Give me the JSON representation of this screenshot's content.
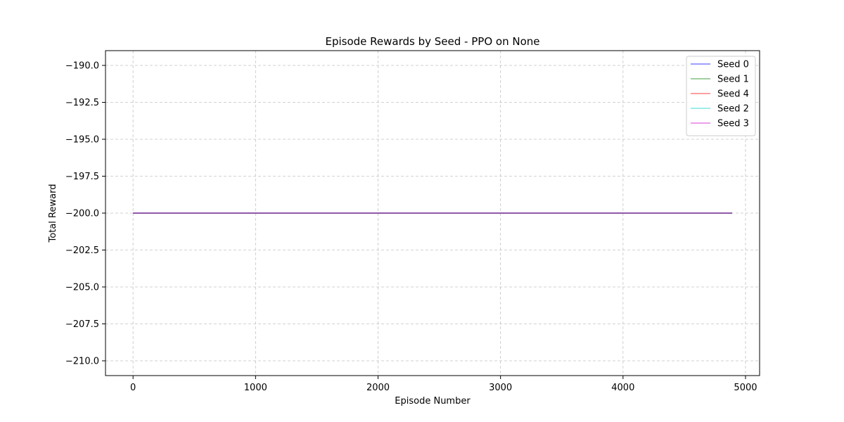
{
  "chart_data": {
    "type": "line",
    "title": "Episode Rewards by Seed - PPO on None",
    "xlabel": "Episode Number",
    "ylabel": "Total Reward",
    "xlim": [
      -225,
      5115
    ],
    "ylim": [
      -211,
      -189
    ],
    "xticks": [
      0,
      1000,
      2000,
      3000,
      4000,
      5000
    ],
    "xtick_labels": [
      "0",
      "1000",
      "2000",
      "3000",
      "4000",
      "5000"
    ],
    "yticks": [
      -190.0,
      -192.5,
      -195.0,
      -197.5,
      -200.0,
      -202.5,
      -205.0,
      -207.5,
      -210.0
    ],
    "ytick_labels": [
      "−190.0",
      "−192.5",
      "−195.0",
      "−197.5",
      "−200.0",
      "−202.5",
      "−205.0",
      "−207.5",
      "−210.0"
    ],
    "grid": true,
    "legend_position": "top-right",
    "series": [
      {
        "name": "Seed 0",
        "color": "#0000ff",
        "x": [
          0,
          4890
        ],
        "y": [
          -200,
          -200
        ]
      },
      {
        "name": "Seed 1",
        "color": "#008000",
        "x": [
          0,
          4890
        ],
        "y": [
          -200,
          -200
        ]
      },
      {
        "name": "Seed 4",
        "color": "#ff0000",
        "x": [
          0,
          4890
        ],
        "y": [
          -200,
          -200
        ]
      },
      {
        "name": "Seed 2",
        "color": "#00cccc",
        "x": [
          0,
          4890
        ],
        "y": [
          -200,
          -200
        ]
      },
      {
        "name": "Seed 3",
        "color": "#cc00cc",
        "x": [
          0,
          4890
        ],
        "y": [
          -200,
          -200
        ]
      }
    ]
  }
}
